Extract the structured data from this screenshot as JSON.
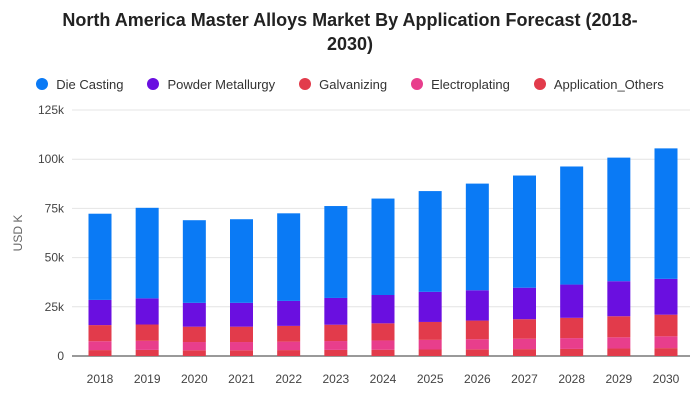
{
  "chart_data": {
    "type": "bar",
    "stacked": true,
    "title_lines": [
      "North America Master Alloys Market By Application Forecast (2018-",
      "2030)"
    ],
    "xlabel": "",
    "ylabel": "USD K",
    "ylim": [
      0,
      125000
    ],
    "yticks": [
      0,
      25000,
      50000,
      75000,
      100000,
      125000
    ],
    "ytick_labels": [
      "0",
      "25k",
      "50k",
      "75k",
      "100k",
      "125k"
    ],
    "grid": true,
    "legend_position": "top",
    "categories": [
      "2018",
      "2019",
      "2020",
      "2021",
      "2022",
      "2023",
      "2024",
      "2025",
      "2026",
      "2027",
      "2028",
      "2029",
      "2030"
    ],
    "series": [
      {
        "name": "Application_Others",
        "color": "#e23b4b",
        "values": [
          3000,
          3100,
          2900,
          2900,
          3000,
          3100,
          3200,
          3300,
          3400,
          3500,
          3600,
          3800,
          4000
        ]
      },
      {
        "name": "Electroplating",
        "color": "#e83e8c",
        "values": [
          4500,
          4600,
          4200,
          4200,
          4300,
          4500,
          4700,
          4900,
          5100,
          5300,
          5500,
          5700,
          6000
        ]
      },
      {
        "name": "Galvanizing",
        "color": "#e23b4b",
        "values": [
          8200,
          8300,
          7800,
          7800,
          8000,
          8300,
          8700,
          9100,
          9500,
          9900,
          10300,
          10700,
          11000
        ]
      },
      {
        "name": "Powder Metallurgy",
        "color": "#6a0fe0",
        "values": [
          12800,
          13300,
          12100,
          12100,
          12700,
          13600,
          14400,
          15300,
          15400,
          16000,
          16900,
          17800,
          18200
        ]
      },
      {
        "name": "Die Casting",
        "color": "#0a7af5",
        "values": [
          43800,
          46000,
          42000,
          42500,
          44500,
          46700,
          49000,
          51200,
          54200,
          57000,
          60000,
          62800,
          66300
        ]
      }
    ],
    "legend_order": [
      "Die Casting",
      "Powder Metallurgy",
      "Galvanizing",
      "Electroplating",
      "Application_Others"
    ]
  }
}
